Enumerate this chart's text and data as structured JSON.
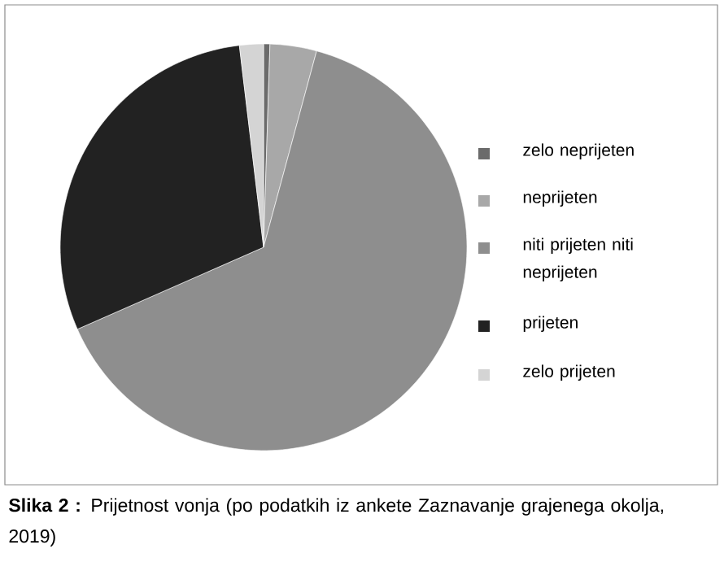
{
  "chart_data": {
    "type": "pie",
    "categories": [
      "zelo neprijeten",
      "neprijeten",
      "niti prijeten niti neprijeten",
      "prijeten",
      "zelo prijeten"
    ],
    "values": [
      0.5,
      3.7,
      64.2,
      29.7,
      1.9
    ],
    "colors": [
      "#6b6b6b",
      "#a8a8a8",
      "#8e8e8e",
      "#222222",
      "#d4d4d4"
    ],
    "legend": "right",
    "annotations": [
      "**Slika 2 :** Prijetnost vonja (po podatkih iz ankete Zaznavanje grajenega okolja, 2019)"
    ]
  }
}
